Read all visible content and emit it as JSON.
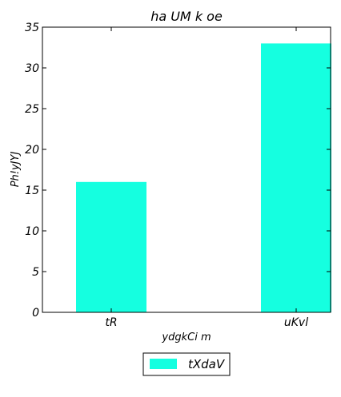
{
  "chart_data": {
    "type": "bar",
    "title": "ha UM k oe",
    "xlabel": "ydgkCi  m",
    "ylabel": "Ph!yJYJ",
    "categories": [
      "tR",
      "uKvl"
    ],
    "series": [
      {
        "name": "tXdaV",
        "values": [
          16,
          33
        ],
        "color": "#15ffe0"
      }
    ],
    "ylim": [
      0,
      35
    ],
    "yticks": [
      0,
      5,
      10,
      15,
      20,
      25,
      30,
      35
    ],
    "grid": false,
    "legend_position": "bottom-center"
  }
}
